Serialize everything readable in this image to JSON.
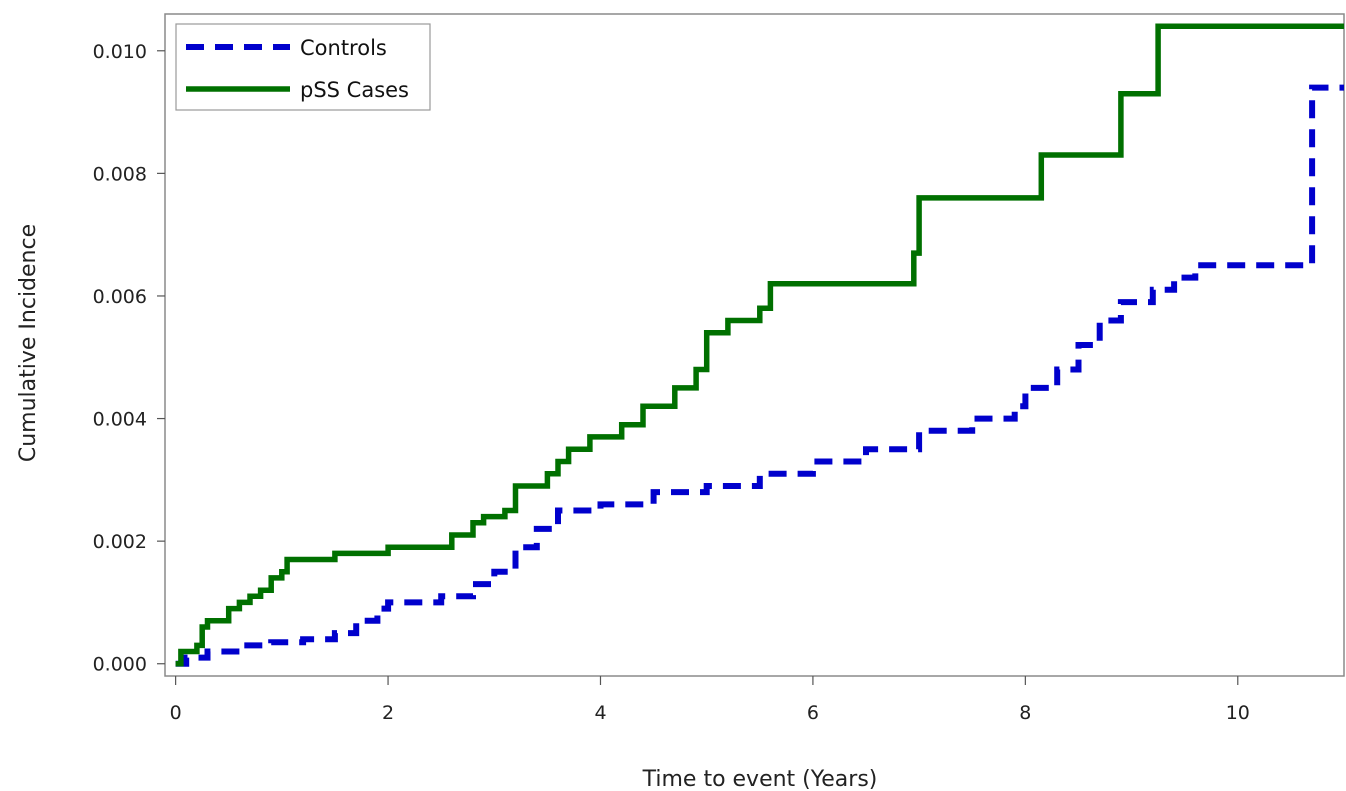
{
  "chart_data": {
    "type": "line",
    "title": "",
    "xlabel": "Time to event (Years)",
    "ylabel": "Cumulative Incidence",
    "xlim": [
      -0.1,
      11.0
    ],
    "ylim": [
      -0.0002,
      0.0106
    ],
    "xticks": [
      0,
      2,
      4,
      6,
      8,
      10
    ],
    "xtick_labels": [
      "0",
      "2",
      "4",
      "6",
      "8",
      "10"
    ],
    "yticks": [
      0.0,
      0.002,
      0.004,
      0.006,
      0.008,
      0.01
    ],
    "ytick_labels": [
      "0.000",
      "0.002",
      "0.004",
      "0.006",
      "0.008",
      "0.010"
    ],
    "grid": false,
    "legend_position": "top-left",
    "step": true,
    "series": [
      {
        "name": "Controls",
        "color": "#0000cc",
        "style": "dashed",
        "x": [
          0,
          0.1,
          0.3,
          0.6,
          0.9,
          1.2,
          1.5,
          1.7,
          1.9,
          2.0,
          2.5,
          2.8,
          3.0,
          3.2,
          3.4,
          3.6,
          4.0,
          4.5,
          5.0,
          5.5,
          6.0,
          6.5,
          7.0,
          7.5,
          7.9,
          8.0,
          8.3,
          8.5,
          8.7,
          8.9,
          9.2,
          9.4,
          9.6,
          10.7,
          11.0
        ],
        "y": [
          0.0,
          0.0001,
          0.0002,
          0.0003,
          0.00035,
          0.0004,
          0.0005,
          0.0007,
          0.0009,
          0.001,
          0.0011,
          0.0013,
          0.0015,
          0.0019,
          0.0022,
          0.0025,
          0.0026,
          0.0028,
          0.0029,
          0.0031,
          0.0033,
          0.0035,
          0.0038,
          0.004,
          0.0042,
          0.0045,
          0.0048,
          0.0052,
          0.0056,
          0.0059,
          0.0061,
          0.0063,
          0.0065,
          0.0094,
          0.0094
        ]
      },
      {
        "name": "pSS Cases",
        "color": "#007000",
        "style": "solid",
        "x": [
          0,
          0.05,
          0.2,
          0.25,
          0.3,
          0.5,
          0.6,
          0.7,
          0.8,
          0.9,
          1.0,
          1.05,
          1.5,
          2.0,
          2.6,
          2.8,
          2.9,
          3.1,
          3.2,
          3.5,
          3.6,
          3.7,
          3.9,
          4.2,
          4.4,
          4.7,
          4.9,
          5.0,
          5.2,
          5.5,
          5.6,
          6.95,
          7.0,
          8.15,
          8.9,
          9.25,
          11.0
        ],
        "y": [
          0.0,
          0.0002,
          0.0003,
          0.0006,
          0.0007,
          0.0009,
          0.001,
          0.0011,
          0.0012,
          0.0014,
          0.0015,
          0.0017,
          0.0018,
          0.0019,
          0.0021,
          0.0023,
          0.0024,
          0.0025,
          0.0029,
          0.0031,
          0.0033,
          0.0035,
          0.0037,
          0.0039,
          0.0042,
          0.0045,
          0.0048,
          0.0054,
          0.0056,
          0.0058,
          0.0062,
          0.0067,
          0.0076,
          0.0083,
          0.0093,
          0.0104,
          0.0104
        ]
      }
    ]
  }
}
